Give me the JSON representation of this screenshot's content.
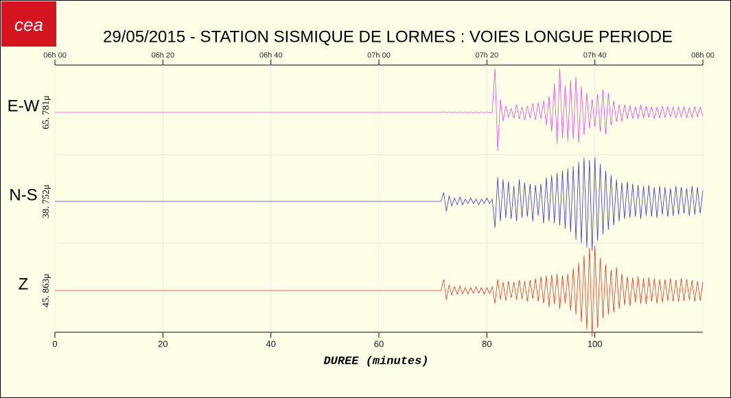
{
  "chart_data": {
    "type": "line",
    "title": "29/05/2015  -  STATION SISMIQUE DE LORMES : VOIES LONGUE PERIODE",
    "logo_text": "cea",
    "xlabel": "DUREE (minutes)",
    "xlim": [
      0,
      120
    ],
    "xticks": [
      0,
      20,
      40,
      60,
      80,
      100
    ],
    "top_xticks": [
      {
        "value": 0,
        "label": "06h 00"
      },
      {
        "value": 20,
        "label": "06h 20"
      },
      {
        "value": 40,
        "label": "06h 40"
      },
      {
        "value": 60,
        "label": "07h 00"
      },
      {
        "value": 80,
        "label": "07h 20"
      },
      {
        "value": 100,
        "label": "07h 40"
      },
      {
        "value": 120,
        "label": "08h 00"
      }
    ],
    "grid": true,
    "x": [
      0,
      40,
      71.5,
      72,
      72.5,
      73,
      73.5,
      74,
      74.5,
      75,
      75.5,
      76,
      76.5,
      77,
      77.5,
      78,
      78.5,
      79,
      79.5,
      80,
      80.5,
      81,
      81.5,
      82,
      82.5,
      83,
      83.5,
      84,
      84.5,
      85,
      85.5,
      86,
      86.5,
      87,
      87.5,
      88,
      88.5,
      89,
      89.5,
      90,
      90.5,
      91,
      91.5,
      92,
      92.5,
      93,
      93.5,
      94,
      94.5,
      95,
      95.5,
      96,
      96.5,
      97,
      97.5,
      98,
      98.5,
      99,
      99.5,
      100,
      100.5,
      101,
      101.5,
      102,
      102.5,
      103,
      103.5,
      104,
      104.5,
      105,
      105.5,
      106,
      106.5,
      107,
      107.5,
      108,
      108.5,
      109,
      109.5,
      110,
      110.5,
      111,
      111.5,
      112,
      112.5,
      113,
      113.5,
      114,
      114.5,
      115,
      115.5,
      116,
      116.5,
      117,
      117.5,
      118,
      118.5,
      119,
      119.5,
      120
    ],
    "series": [
      {
        "name": "E-W",
        "color": "#ee44ee",
        "scale": {
          "value": 65.781,
          "label": "65. 781μ"
        },
        "values": [
          0,
          0,
          0,
          0.5,
          -0.5,
          0.5,
          -0.5,
          0.5,
          -0.5,
          0.5,
          -0.5,
          0.5,
          -0.5,
          0.5,
          -0.5,
          0.5,
          -0.5,
          0.5,
          -0.5,
          0.5,
          -0.5,
          0,
          68,
          -60,
          20,
          -14,
          10,
          -8,
          6,
          -9,
          12,
          -10,
          8,
          -12,
          10,
          -9,
          14,
          -12,
          15,
          -10,
          18,
          -20,
          25,
          -30,
          45,
          -48,
          68,
          -40,
          42,
          -45,
          50,
          -42,
          55,
          -48,
          40,
          -35,
          30,
          -25,
          20,
          -22,
          28,
          -30,
          35,
          -34,
          30,
          -20,
          18,
          -15,
          12,
          -14,
          12,
          -10,
          11,
          -10,
          9,
          -10,
          12,
          -9,
          10,
          -8,
          9,
          -10,
          8,
          -9,
          10,
          -8,
          9,
          -7,
          8,
          -9,
          8,
          -7,
          9,
          -8,
          7,
          -8,
          9,
          -7,
          8,
          -6
        ]
      },
      {
        "name": "N-S",
        "color": "#3333dd",
        "scale": {
          "value": 38.752,
          "label": "38. 752μ"
        },
        "values": [
          0,
          0,
          0,
          8,
          -9,
          5,
          -4,
          3,
          -3,
          4,
          -3,
          2,
          -2,
          3,
          -2,
          2,
          -3,
          2,
          -2,
          3,
          -2,
          2,
          -24,
          22,
          -18,
          20,
          -15,
          18,
          -16,
          14,
          -18,
          20,
          -15,
          17,
          -14,
          16,
          -18,
          15,
          -13,
          16,
          -20,
          22,
          -18,
          24,
          -20,
          26,
          -22,
          28,
          -25,
          30,
          -28,
          32,
          -35,
          36,
          -38,
          40,
          -42,
          38,
          -45,
          40,
          -36,
          34,
          -30,
          28,
          -26,
          24,
          -22,
          20,
          -18,
          17,
          -16,
          18,
          -15,
          16,
          -14,
          15,
          -16,
          14,
          -13,
          15,
          -14,
          13,
          -15,
          14,
          -12,
          13,
          -14,
          12,
          -13,
          14,
          -12,
          13,
          -11,
          12,
          -13,
          14,
          -12,
          13,
          -11,
          10
        ]
      },
      {
        "name": "Z",
        "color": "#ee3322",
        "scale": {
          "value": 45.863,
          "label": "45. 863μ"
        },
        "values": [
          0,
          0,
          0,
          12,
          -10,
          6,
          -5,
          4,
          -4,
          5,
          -4,
          3,
          -4,
          3,
          -3,
          4,
          -3,
          3,
          -4,
          3,
          -3,
          4,
          -14,
          12,
          -10,
          9,
          -11,
          10,
          -8,
          9,
          -10,
          11,
          -9,
          10,
          -12,
          11,
          -9,
          13,
          -12,
          15,
          -14,
          16,
          -18,
          17,
          -15,
          18,
          -20,
          16,
          -14,
          18,
          -22,
          24,
          -26,
          30,
          -34,
          38,
          -42,
          46,
          -50,
          48,
          -40,
          35,
          -30,
          28,
          -26,
          22,
          -24,
          25,
          -20,
          18,
          -16,
          15,
          -17,
          14,
          -13,
          15,
          -14,
          13,
          -15,
          14,
          -12,
          13,
          -14,
          12,
          -13,
          12,
          -11,
          13,
          -12,
          11,
          -12,
          13,
          -11,
          12,
          -10,
          11,
          -12,
          10,
          -11,
          9
        ]
      }
    ]
  }
}
